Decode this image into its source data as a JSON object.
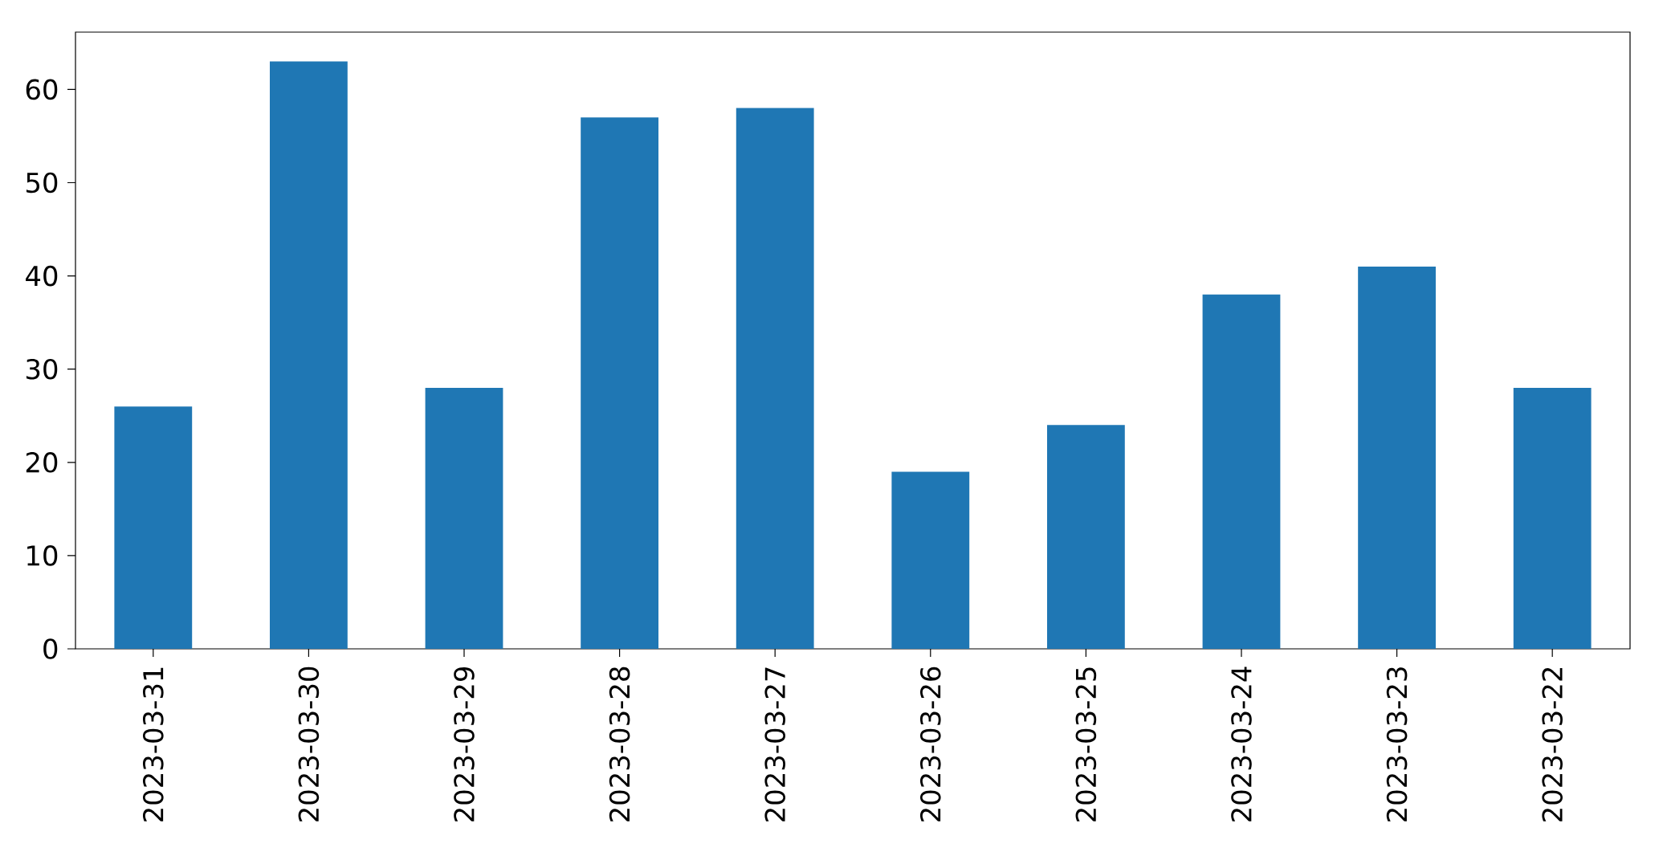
{
  "chart_data": {
    "type": "bar",
    "categories": [
      "2023-03-31",
      "2023-03-30",
      "2023-03-29",
      "2023-03-28",
      "2023-03-27",
      "2023-03-26",
      "2023-03-25",
      "2023-03-24",
      "2023-03-23",
      "2023-03-22"
    ],
    "values": [
      26,
      63,
      28,
      57,
      58,
      19,
      24,
      38,
      41,
      28
    ],
    "color": "#1f77b4",
    "ylim": [
      0,
      66.15
    ],
    "yticks": [
      0,
      10,
      20,
      30,
      40,
      50,
      60
    ]
  }
}
